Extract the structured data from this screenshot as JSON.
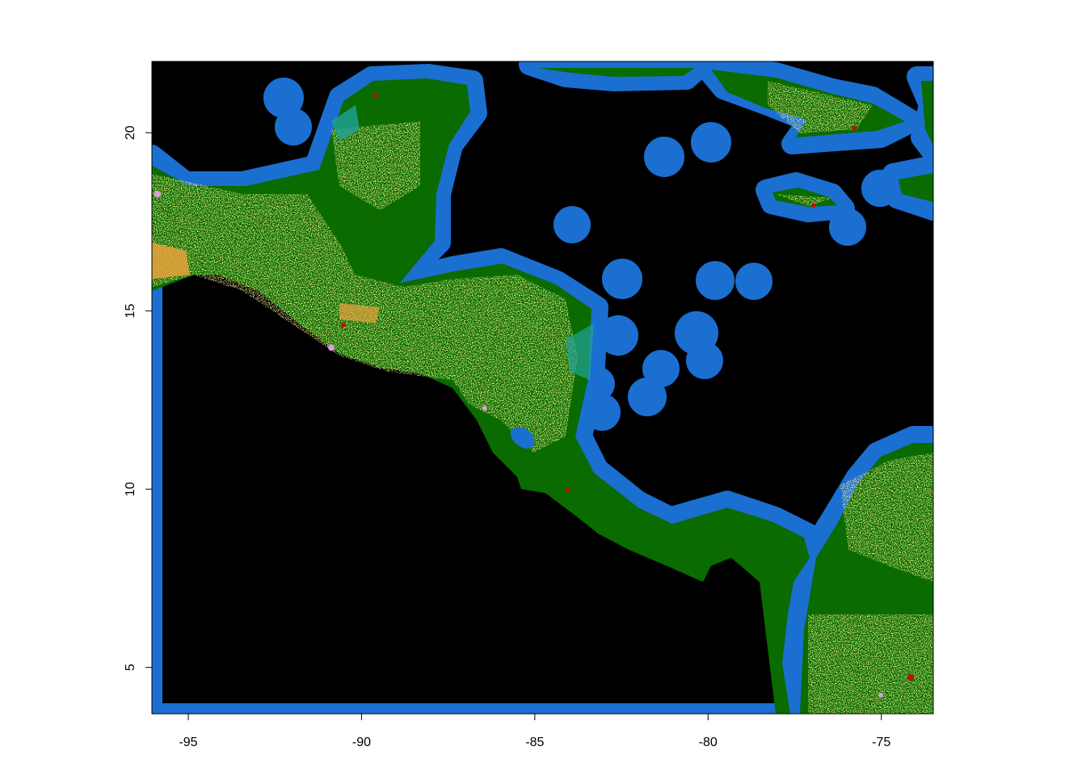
{
  "map": {
    "x_axis": {
      "range": [
        -96.05,
        -73.5
      ],
      "ticks": [
        -95,
        -90,
        -85,
        -80,
        -75
      ],
      "tick_labels": [
        "-95",
        "-90",
        "-85",
        "-80",
        "-75"
      ]
    },
    "y_axis": {
      "range": [
        3.7,
        22.0
      ],
      "ticks": [
        5,
        10,
        15,
        20
      ],
      "tick_labels": [
        "5",
        "10",
        "15",
        "20"
      ]
    },
    "colors": {
      "ocean": "#000000",
      "coast": "#1a6fd1",
      "forest": "#0a6b00",
      "cropland": "#f2e34a",
      "shrub": "#e8a23a",
      "urban": "#c40e0e",
      "wetland": "#21a39a",
      "bare": "#d7a0d8"
    }
  }
}
